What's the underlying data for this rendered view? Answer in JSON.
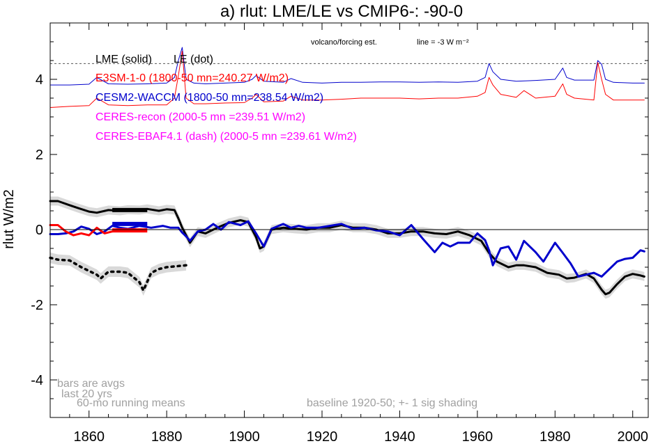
{
  "chart_data": {
    "type": "line",
    "title": "a) rlut: LME/LE vs CMIP6-: -90-0",
    "ylabel": "rlut W/m2",
    "xlabel": "",
    "xlim": [
      1850,
      2004
    ],
    "ylim": [
      -5,
      5.5
    ],
    "x_ticks": [
      1860,
      1880,
      1900,
      1920,
      1940,
      1960,
      1980,
      2000
    ],
    "y_ticks": [
      -4,
      -2,
      0,
      2,
      4
    ],
    "y_tick_labels": [
      "-4",
      "-2",
      "0",
      "2",
      "4"
    ],
    "legend": [
      {
        "label": "LME (solid)",
        "color": "#000000"
      },
      {
        "label": "LE (dot)",
        "color": "#000000"
      },
      {
        "label": "E3SM-1-0 (1800-50 mn=240.27 W/m2)",
        "color": "#ff0000"
      },
      {
        "label": "CESM2-WACCM (1800-50 mn=238.54 W/m2)",
        "color": "#0000cc"
      },
      {
        "label": "CERES-recon (2000-5 mn =239.51 W/m2)",
        "color": "#ff00ff"
      },
      {
        "label": "CERES-EBAF4.1 (dash) (2000-5 mn =239.61 W/m2)",
        "color": "#ff00ff"
      }
    ],
    "annotations": {
      "volcano": "volcano/forcing est.",
      "line_note": "line = -3 W m⁻²",
      "bars_1": "bars are avgs",
      "bars_2": "last 20 yrs",
      "running": "60-mo running means",
      "baseline": "baseline 1920-50; +- 1 sig shading"
    },
    "volcano_line_level": 4.42,
    "zero_line": 0,
    "series": [
      {
        "name": "LME (solid)",
        "color": "#000000",
        "style": "solid",
        "x": [
          1850,
          1852,
          1855,
          1857,
          1860,
          1862,
          1865,
          1868,
          1870,
          1873,
          1875,
          1878,
          1880,
          1882,
          1883,
          1884,
          1885,
          1886,
          1888,
          1890,
          1893,
          1896,
          1899,
          1901,
          1903,
          1904,
          1905,
          1907,
          1910,
          1913,
          1916,
          1919,
          1922,
          1925,
          1928,
          1931,
          1934,
          1937,
          1940,
          1943,
          1946,
          1949,
          1952,
          1955,
          1958,
          1961,
          1963,
          1965,
          1968,
          1970,
          1972,
          1975,
          1978,
          1981,
          1983,
          1985,
          1988,
          1990,
          1992,
          1993,
          1994,
          1996,
          1998,
          2000,
          2002,
          2003
        ],
        "y": [
          0.76,
          0.76,
          0.65,
          0.58,
          0.48,
          0.45,
          0.52,
          0.5,
          0.53,
          0.52,
          0.55,
          0.5,
          0.54,
          0.52,
          0.3,
          0.05,
          -0.15,
          -0.35,
          -0.05,
          -0.1,
          0.05,
          0.18,
          0.25,
          0.2,
          -0.2,
          -0.5,
          -0.45,
          0.0,
          0.05,
          0.02,
          0.0,
          0.05,
          0.05,
          0.12,
          0.05,
          0.05,
          0.0,
          -0.1,
          -0.1,
          -0.05,
          -0.05,
          -0.1,
          -0.12,
          -0.05,
          -0.15,
          -0.3,
          -0.62,
          -0.85,
          -1.0,
          -0.95,
          -0.95,
          -1.0,
          -1.15,
          -1.2,
          -1.3,
          -1.28,
          -1.18,
          -1.3,
          -1.6,
          -1.72,
          -1.68,
          -1.45,
          -1.25,
          -1.18,
          -1.22,
          -1.25
        ]
      },
      {
        "name": "CESM2-WACCM (1800-50 mn=238.54 W/m2)",
        "color": "#0000cc",
        "style": "solid",
        "x": [
          1850,
          1852,
          1854,
          1856,
          1858,
          1860,
          1862,
          1864,
          1866,
          1868,
          1870,
          1873,
          1876,
          1879,
          1881,
          1883,
          1884,
          1885,
          1886,
          1888,
          1890,
          1892,
          1894,
          1896,
          1899,
          1901,
          1903,
          1905,
          1907,
          1910,
          1912,
          1914,
          1916,
          1919,
          1922,
          1925,
          1928,
          1931,
          1934,
          1937,
          1940,
          1943,
          1946,
          1949,
          1951,
          1953,
          1955,
          1958,
          1960,
          1962,
          1963,
          1964,
          1966,
          1968,
          1970,
          1972,
          1975,
          1977,
          1980,
          1982,
          1984,
          1986,
          1988,
          1990,
          1992,
          1994,
          1996,
          1998,
          2000,
          2002,
          2003
        ],
        "y": [
          -0.12,
          -0.12,
          -0.1,
          -0.05,
          0.08,
          0.02,
          -0.12,
          -0.05,
          0.1,
          0.05,
          0.02,
          0.1,
          0.05,
          0.1,
          0.05,
          0.05,
          -0.08,
          -0.18,
          -0.3,
          -0.05,
          0.0,
          0.15,
          0.0,
          0.2,
          0.12,
          0.22,
          -0.1,
          -0.45,
          0.02,
          0.15,
          0.05,
          0.1,
          0.05,
          0.05,
          0.1,
          0.15,
          0.02,
          0.05,
          -0.02,
          -0.05,
          -0.15,
          0.12,
          -0.25,
          -0.6,
          -0.35,
          -0.45,
          -0.35,
          -0.35,
          -0.1,
          -0.28,
          -0.55,
          -0.95,
          -0.5,
          -0.45,
          -0.8,
          -0.3,
          -0.6,
          -0.85,
          -0.35,
          -0.62,
          -0.9,
          -1.25,
          -1.2,
          -1.15,
          -1.25,
          -1.05,
          -0.85,
          -0.78,
          -0.75,
          -0.55,
          -0.58
        ]
      },
      {
        "name": "E3SM-1-0 (1800-50 mn=240.27 W/m2)",
        "color": "#ff0000",
        "style": "solid",
        "x": [
          1850,
          1852,
          1854,
          1856,
          1858,
          1860,
          1862,
          1864,
          1866,
          1868,
          1870,
          1872,
          1874
        ],
        "y": [
          0.12,
          0.12,
          -0.05,
          -0.15,
          -0.1,
          -0.15,
          0.05,
          -0.1,
          -0.05,
          0.0,
          0.0,
          0.0,
          0.0
        ]
      },
      {
        "name": "LE (dot)",
        "color": "#000000",
        "style": "dot",
        "x": [
          1850,
          1852,
          1855,
          1858,
          1860,
          1862,
          1863,
          1865,
          1868,
          1870,
          1873,
          1874,
          1876,
          1878,
          1880,
          1882,
          1885
        ],
        "y": [
          -0.75,
          -0.8,
          -0.82,
          -1.0,
          -1.1,
          -1.2,
          -1.3,
          -1.12,
          -1.12,
          -1.15,
          -1.4,
          -1.62,
          -1.15,
          -1.05,
          -1.0,
          -0.98,
          -0.95
        ]
      },
      {
        "name": "CESM2-WACCM forcing (upper)",
        "color": "#0000cc",
        "style": "thin",
        "x": [
          1850,
          1855,
          1860,
          1862,
          1865,
          1870,
          1875,
          1880,
          1882,
          1883,
          1884,
          1885,
          1887,
          1890,
          1895,
          1900,
          1902,
          1903,
          1905,
          1910,
          1912,
          1915,
          1920,
          1925,
          1930,
          1935,
          1940,
          1945,
          1950,
          1955,
          1960,
          1962,
          1963,
          1964,
          1966,
          1970,
          1975,
          1980,
          1982,
          1983,
          1985,
          1990,
          1991,
          1992,
          1993,
          1995,
          2000,
          2003
        ],
        "y": [
          3.85,
          3.85,
          3.87,
          4.05,
          3.88,
          3.87,
          3.88,
          3.9,
          4.05,
          4.5,
          4.85,
          4.0,
          3.9,
          3.88,
          3.9,
          3.92,
          4.0,
          4.1,
          3.95,
          3.92,
          4.02,
          3.92,
          3.9,
          3.92,
          3.92,
          3.93,
          3.93,
          3.92,
          3.93,
          3.92,
          3.95,
          4.05,
          4.42,
          4.2,
          4.0,
          3.95,
          3.97,
          4.0,
          4.3,
          4.05,
          3.98,
          3.98,
          4.5,
          4.4,
          4.0,
          3.92,
          3.9,
          3.9
        ]
      },
      {
        "name": "E3SM forcing (lower)",
        "color": "#ff0000",
        "style": "thin",
        "x": [
          1850,
          1855,
          1860,
          1862,
          1865,
          1870,
          1875,
          1880,
          1882,
          1883,
          1884,
          1885,
          1887,
          1890,
          1895,
          1900,
          1902,
          1903,
          1905,
          1910,
          1912,
          1915,
          1920,
          1925,
          1930,
          1935,
          1940,
          1945,
          1950,
          1955,
          1960,
          1962,
          1963,
          1964,
          1966,
          1970,
          1972,
          1975,
          1980,
          1982,
          1983,
          1985,
          1990,
          1991,
          1992,
          1993,
          1995,
          2000,
          2003
        ],
        "y": [
          3.25,
          3.28,
          3.3,
          3.5,
          3.32,
          3.3,
          3.32,
          3.32,
          3.5,
          4.1,
          4.75,
          3.5,
          3.35,
          3.35,
          3.37,
          3.38,
          3.5,
          3.6,
          3.4,
          3.42,
          3.55,
          3.45,
          3.45,
          3.47,
          3.5,
          3.5,
          3.5,
          3.48,
          3.5,
          3.5,
          3.55,
          3.65,
          4.05,
          3.85,
          3.6,
          3.52,
          3.7,
          3.5,
          3.55,
          3.88,
          3.6,
          3.5,
          3.45,
          4.45,
          4.0,
          3.6,
          3.45,
          3.45,
          3.45
        ]
      }
    ],
    "bars": [
      {
        "name": "LME bar",
        "color": "#000000",
        "x0": 1866,
        "x1": 1875,
        "y": 0.52
      },
      {
        "name": "CESM2-WACCM bar",
        "color": "#0000cc",
        "x0": 1866,
        "x1": 1875,
        "y": 0.15
      },
      {
        "name": "E3SM bar",
        "color": "#ff0000",
        "x0": 1866,
        "x1": 1875,
        "y": -0.02
      }
    ],
    "shading": [
      {
        "name": "LME shading",
        "x0": 1850,
        "x1": 2003,
        "sigma": 0.12
      },
      {
        "name": "LE shading",
        "x0": 1850,
        "x1": 1885,
        "sigma": 0.14
      }
    ]
  }
}
